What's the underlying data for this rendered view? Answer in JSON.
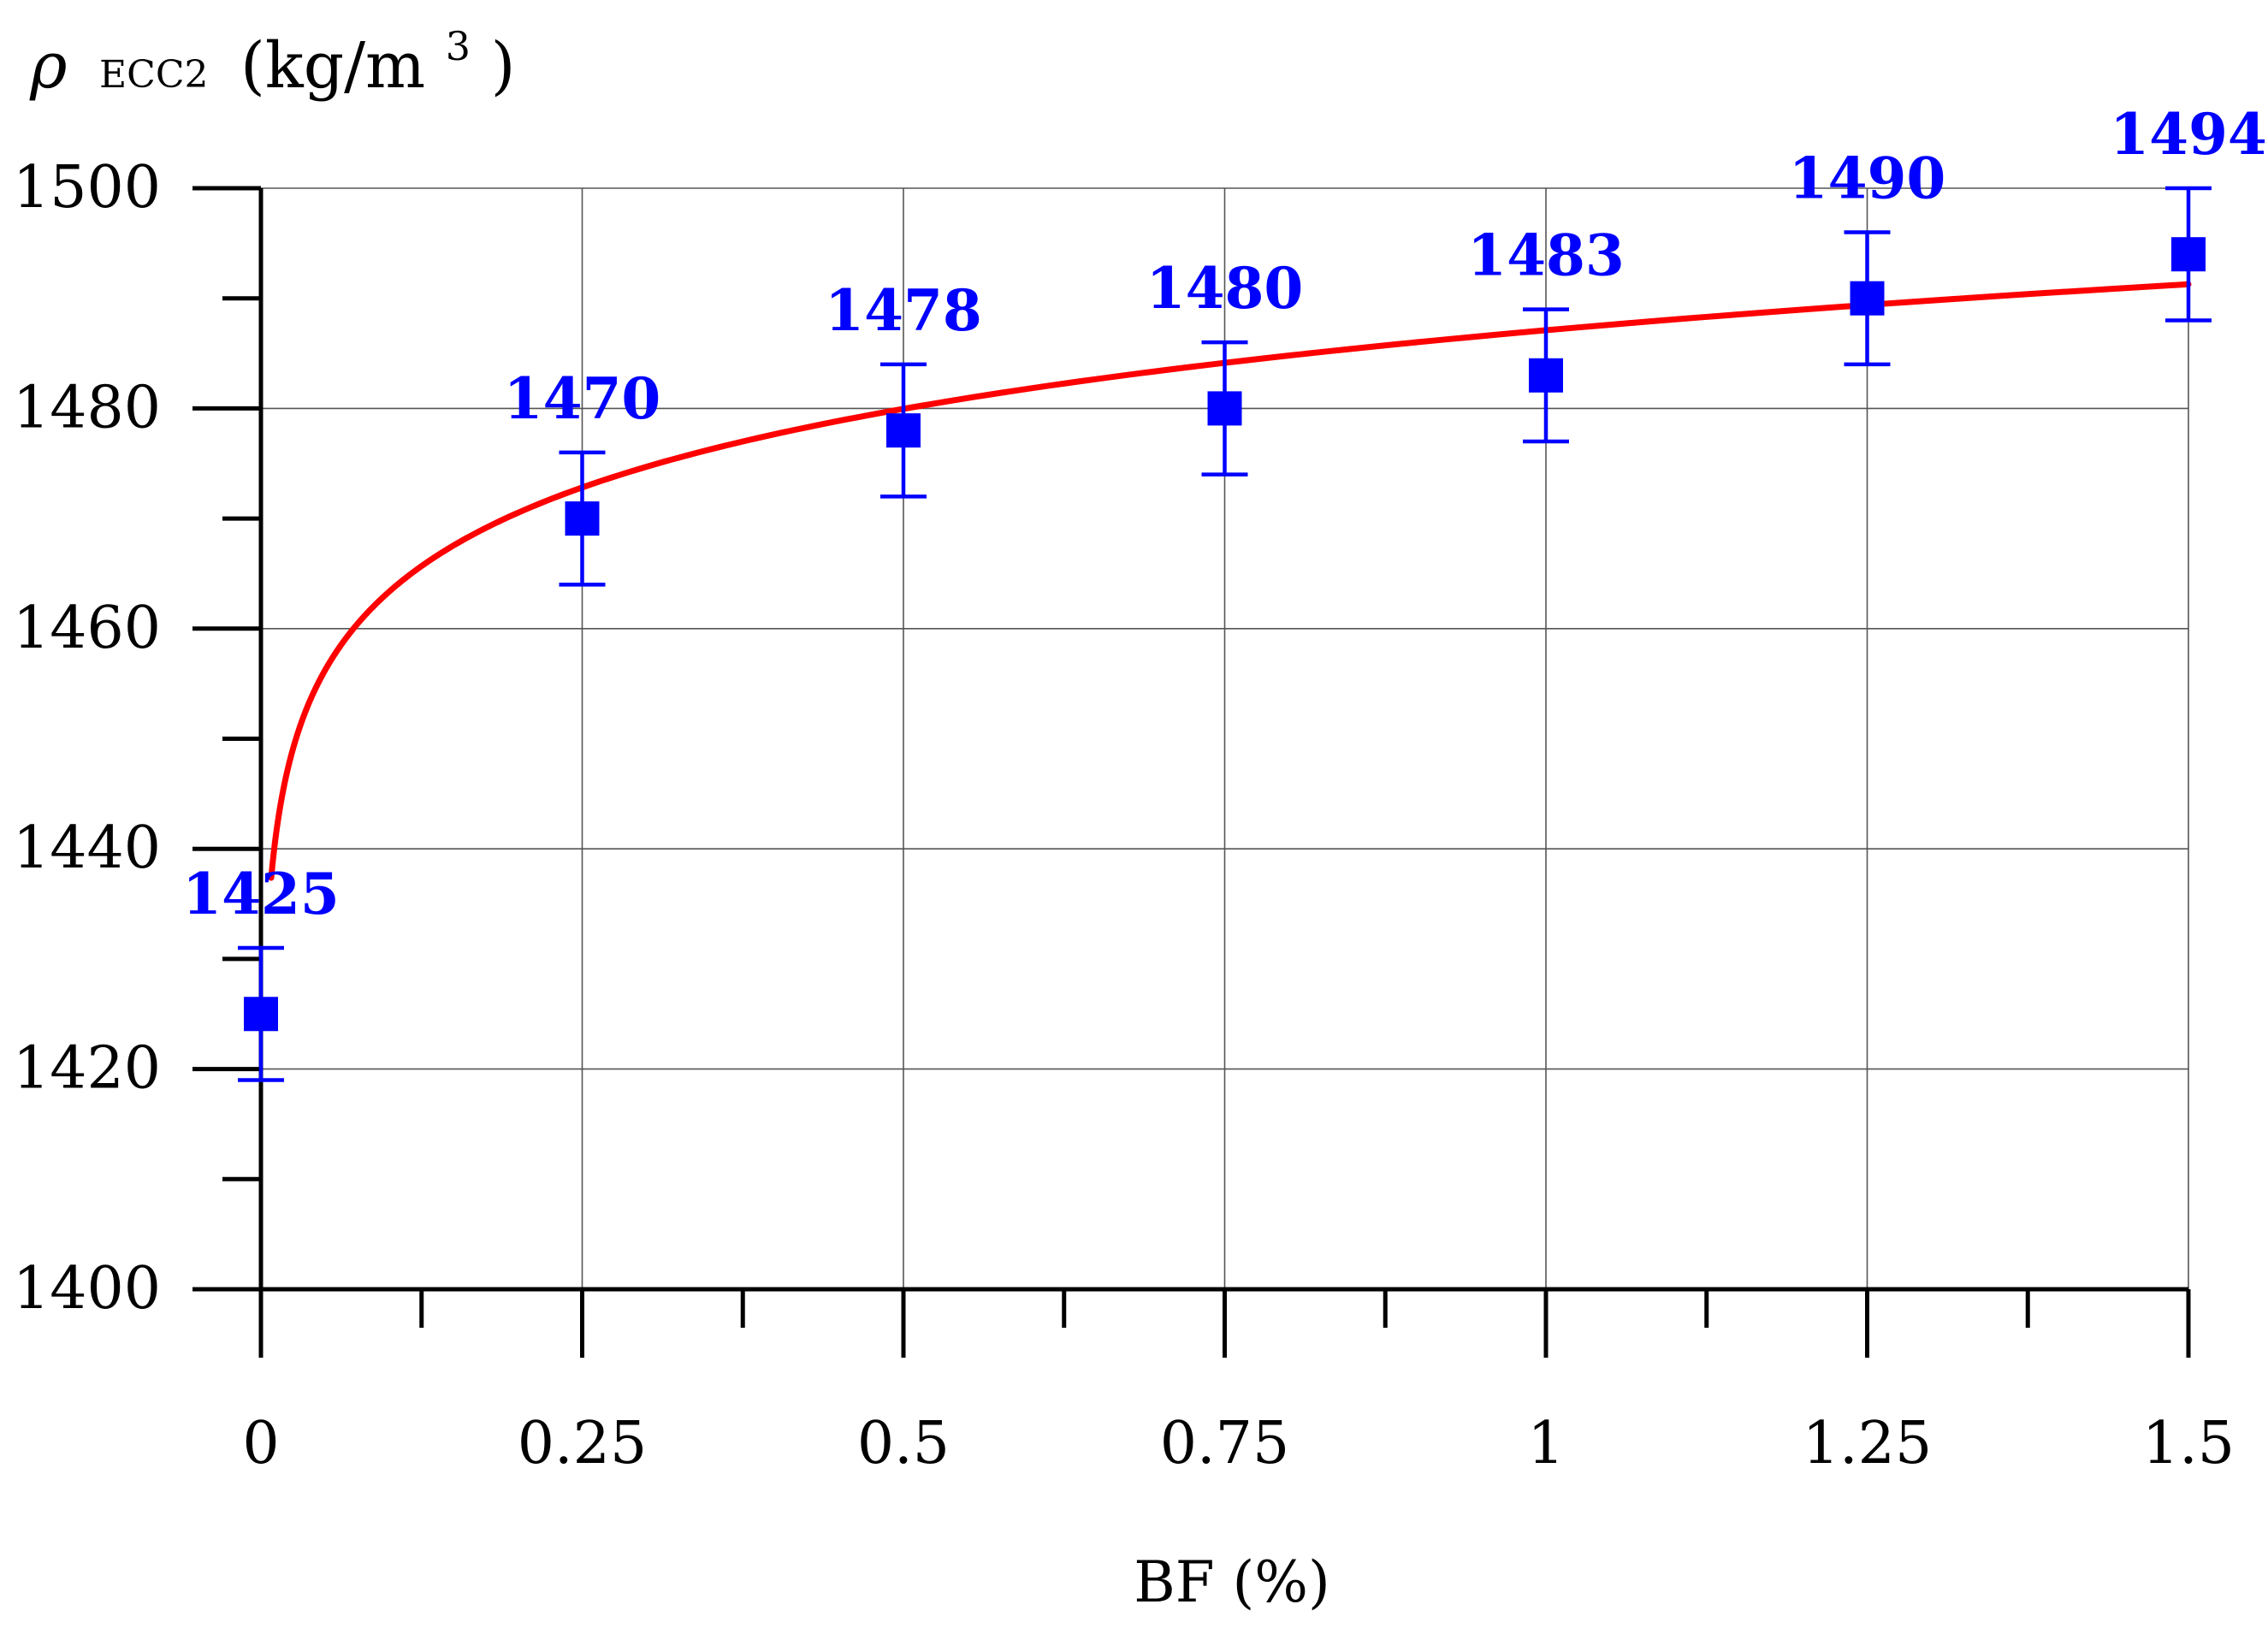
{
  "chart_data": {
    "type": "scatter",
    "ylabel_symbol": "ρ",
    "ylabel_sub": "ECC2",
    "ylabel_unit_prefix": "(kg/m",
    "ylabel_unit_sup": "3",
    "ylabel_unit_suffix": ")",
    "xlabel": "BF (%)",
    "xlim": [
      0,
      1.5
    ],
    "ylim": [
      1400,
      1500
    ],
    "x_ticks": [
      0,
      0.25,
      0.5,
      0.75,
      1,
      1.25,
      1.5
    ],
    "x_tick_labels": [
      "0",
      "0.25",
      "0.5",
      "0.75",
      "1",
      "1.25",
      "1.5"
    ],
    "x_minor_ticks": [
      0.125,
      0.375,
      0.625,
      0.875,
      1.125,
      1.375
    ],
    "y_ticks": [
      1400,
      1420,
      1440,
      1460,
      1480,
      1500
    ],
    "y_tick_labels": [
      "1400",
      "1420",
      "1440",
      "1460",
      "1480",
      "1500"
    ],
    "y_minor_ticks": [
      1410,
      1430,
      1450,
      1470,
      1490
    ],
    "grid": true,
    "series": [
      {
        "marker": "square",
        "color": "#0000ff",
        "x": [
          0,
          0.25,
          0.5,
          0.75,
          1,
          1.25,
          1.5
        ],
        "y": [
          1425,
          1470,
          1478,
          1480,
          1483,
          1490,
          1494
        ],
        "error": [
          6,
          6,
          6,
          6,
          6,
          6,
          6
        ],
        "data_labels": [
          "1425",
          "1470",
          "1478",
          "1480",
          "1483",
          "1490",
          "1494"
        ]
      }
    ],
    "fit": {
      "type": "logarithmic",
      "color": "#ff0000",
      "x_range": [
        0.008,
        1.5
      ],
      "coefficients": {
        "a": 1487.1,
        "b": 10.3
      }
    }
  }
}
